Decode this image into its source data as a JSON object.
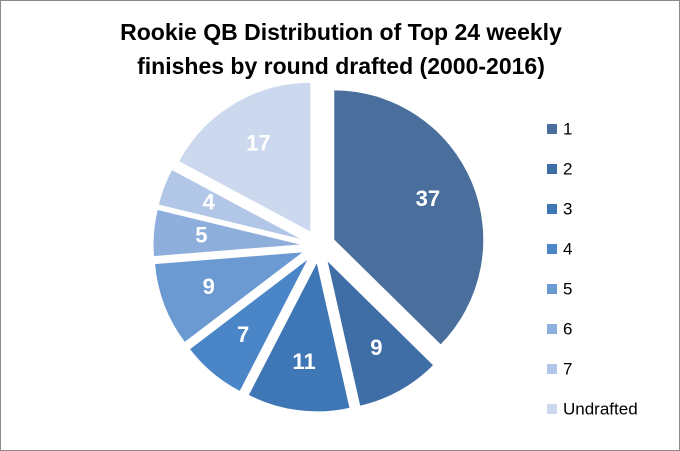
{
  "chart_data": {
    "type": "pie",
    "title": "Rookie QB Distribution of Top 24 weekly finishes by round drafted (2000-2016)",
    "categories": [
      "1",
      "2",
      "3",
      "4",
      "5",
      "6",
      "7",
      "Undrafted"
    ],
    "values": [
      37,
      9,
      11,
      7,
      9,
      5,
      4,
      17
    ],
    "colors": [
      "#4a6f9c",
      "#3f6ea6",
      "#3f77b6",
      "#4a86c7",
      "#6b9ad2",
      "#8eafdc",
      "#b2c7e8",
      "#cbd8ee"
    ],
    "legend": "right"
  }
}
